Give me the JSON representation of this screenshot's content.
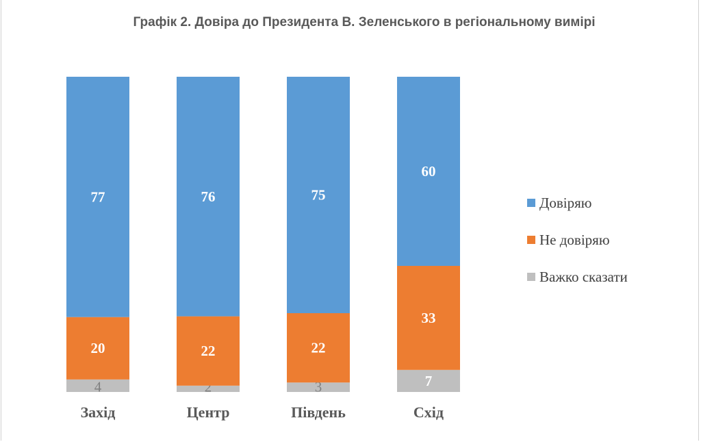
{
  "chart_data": {
    "type": "bar",
    "stacked": true,
    "percent_stacked": true,
    "title": "Графік 2. Довіра до Президента В. Зеленського в регіональному вимірі",
    "categories": [
      "Захід",
      "Центр",
      "Південь",
      "Схід"
    ],
    "series": [
      {
        "name": "Важко сказати",
        "values": [
          4,
          2,
          3,
          7
        ],
        "color": "#bfbfbf",
        "label_color": "#7f7f7f"
      },
      {
        "name": "Не довіряю",
        "values": [
          20,
          22,
          22,
          33
        ],
        "color": "#ed7d31",
        "label_color": "#ffffff"
      },
      {
        "name": "Довіряю",
        "values": [
          77,
          76,
          75,
          60
        ],
        "color": "#5b9bd5",
        "label_color": "#ffffff"
      }
    ],
    "legend_order": [
      "Довіряю",
      "Не довіряю",
      "Важко сказати"
    ],
    "legend_position": "right",
    "ylim": [
      0,
      100
    ],
    "grid": false
  }
}
